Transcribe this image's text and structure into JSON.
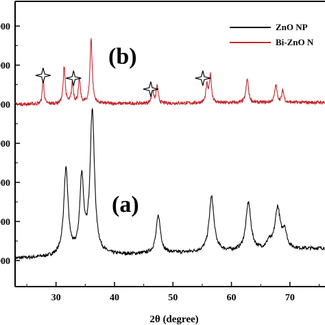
{
  "chart_data": {
    "type": "line",
    "title": "",
    "xlabel": "2θ (degree)",
    "ylabel": "",
    "xlim": [
      23,
      76
    ],
    "x_ticks": [
      30,
      40,
      50,
      60,
      70
    ],
    "x_tick_labels": [
      "30",
      "40",
      "50",
      "60",
      "70"
    ],
    "y_tick_labels": [
      ",000",
      ",000",
      ",000",
      ",000",
      ",000",
      ",000",
      ",000"
    ],
    "grid": false,
    "legend": "top-right",
    "panel_labels": [
      "(b)",
      "(a)"
    ],
    "star_markers_2theta": [
      27.8,
      33.0,
      46.2,
      55.1
    ],
    "series": [
      {
        "name": "ZnO NP",
        "color": "#000000",
        "baseline": 0,
        "peaks": [
          {
            "x": 31.7,
            "h": 125,
            "w": 0.45
          },
          {
            "x": 34.4,
            "h": 110,
            "w": 0.4
          },
          {
            "x": 36.2,
            "h": 210,
            "w": 0.45
          },
          {
            "x": 47.5,
            "h": 55,
            "w": 0.45
          },
          {
            "x": 56.6,
            "h": 80,
            "w": 0.5
          },
          {
            "x": 62.9,
            "h": 70,
            "w": 0.5
          },
          {
            "x": 66.4,
            "h": 10,
            "w": 0.4
          },
          {
            "x": 67.9,
            "h": 60,
            "w": 0.55
          },
          {
            "x": 69.1,
            "h": 25,
            "w": 0.4
          }
        ]
      },
      {
        "name": "Bi-ZnO N",
        "color": "#c0282d",
        "baseline": 0,
        "peaks": [
          {
            "x": 27.8,
            "h": 40,
            "w": 0.15
          },
          {
            "x": 31.4,
            "h": 55,
            "w": 0.2
          },
          {
            "x": 32.8,
            "h": 30,
            "w": 0.2
          },
          {
            "x": 34.0,
            "h": 35,
            "w": 0.2
          },
          {
            "x": 36.0,
            "h": 95,
            "w": 0.22
          },
          {
            "x": 46.5,
            "h": 20,
            "w": 0.2
          },
          {
            "x": 47.3,
            "h": 25,
            "w": 0.2
          },
          {
            "x": 55.8,
            "h": 25,
            "w": 0.2
          },
          {
            "x": 56.4,
            "h": 40,
            "w": 0.22
          },
          {
            "x": 62.7,
            "h": 35,
            "w": 0.25
          },
          {
            "x": 67.6,
            "h": 25,
            "w": 0.25
          },
          {
            "x": 68.8,
            "h": 18,
            "w": 0.2
          }
        ]
      }
    ]
  }
}
